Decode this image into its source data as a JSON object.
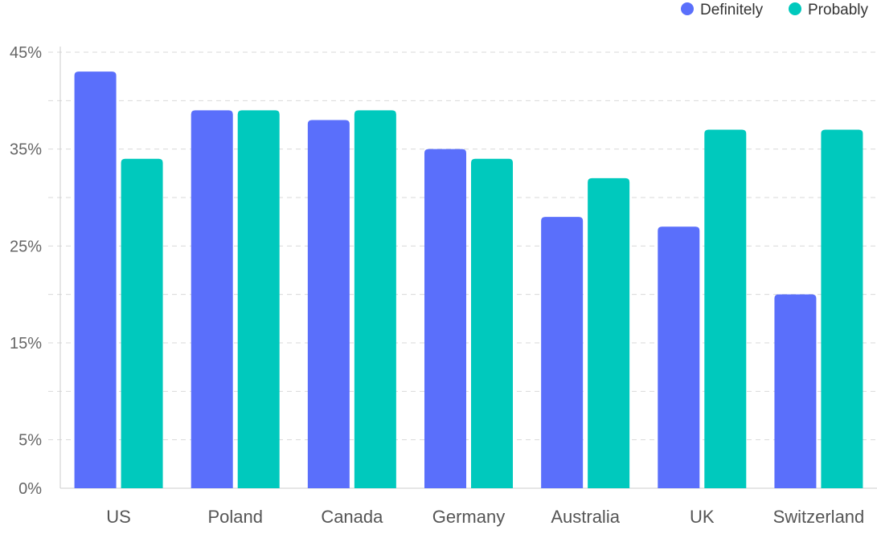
{
  "chart_data": {
    "type": "bar",
    "categories": [
      "US",
      "Poland",
      "Canada",
      "Germany",
      "Australia",
      "UK",
      "Switzerland"
    ],
    "series": [
      {
        "name": "Definitely",
        "color": "#5a6ffb",
        "values": [
          43,
          39,
          38,
          35,
          28,
          27,
          20
        ]
      },
      {
        "name": "Probably",
        "color": "#00c9bd",
        "values": [
          34,
          39,
          39,
          34,
          32,
          37,
          37
        ]
      }
    ],
    "title": "",
    "xlabel": "",
    "ylabel": "",
    "ylim": [
      0,
      45
    ],
    "y_tick_labels": [
      {
        "value": 45,
        "label": "45%"
      },
      {
        "value": 35,
        "label": "35%"
      },
      {
        "value": 25,
        "label": "25%"
      },
      {
        "value": 15,
        "label": "15%"
      },
      {
        "value": 5,
        "label": "5%"
      },
      {
        "value": 0,
        "label": "0%"
      }
    ],
    "gridlines_at": [
      40,
      30,
      20,
      10
    ],
    "grid": true,
    "legend_position": "top-right"
  }
}
